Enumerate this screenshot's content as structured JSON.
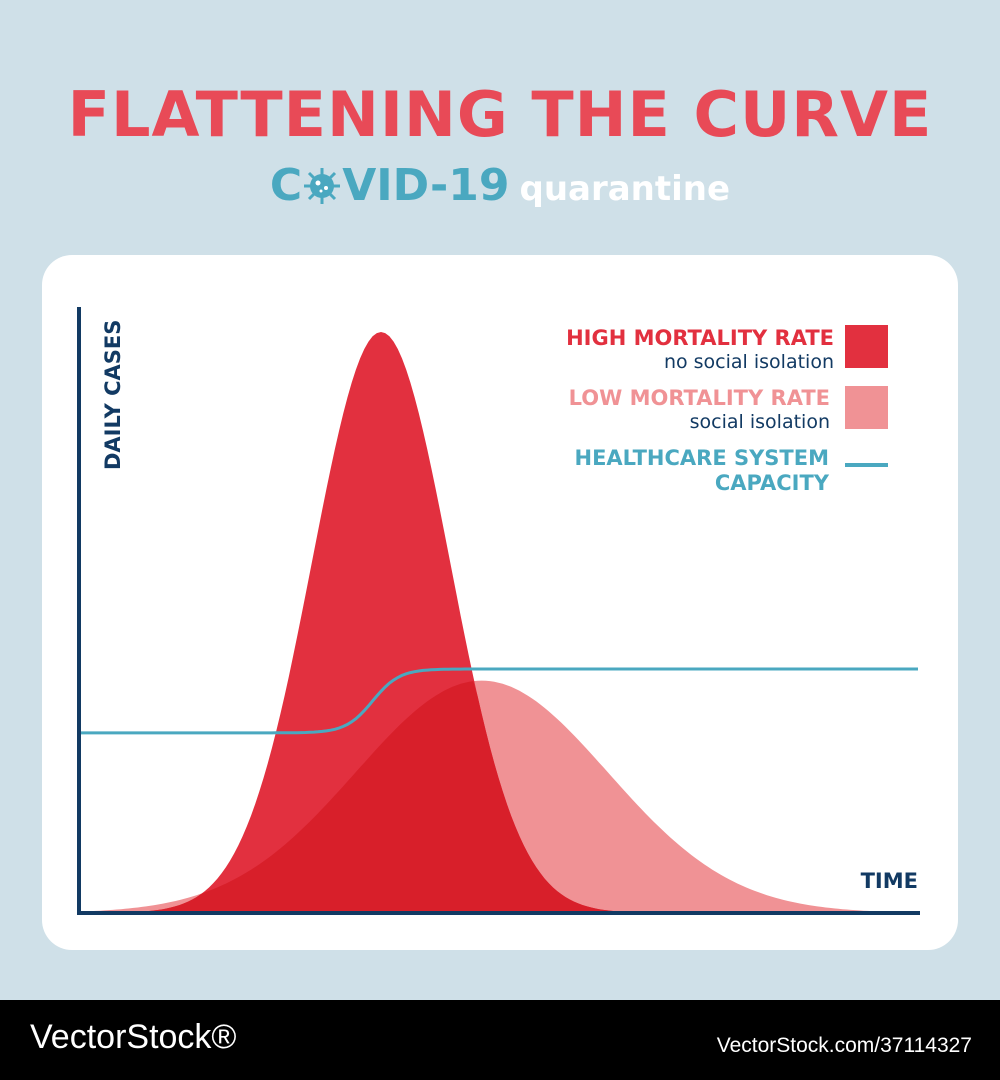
{
  "header": {
    "title": "FLATTENING THE CURVE",
    "subtitle_prefix": "C",
    "subtitle_main": "VID-19",
    "subtitle_suffix": "quarantine"
  },
  "colors": {
    "background": "#cfe0e8",
    "title": "#e84a57",
    "high": "#e2303f",
    "low": "#f09295",
    "overlap": "#d81f2a",
    "capacity": "#4aa8c0",
    "axis": "#123a63"
  },
  "chart_data": {
    "type": "area",
    "title": "FLATTENING THE CURVE",
    "xlabel": "TIME",
    "ylabel": "DAILY CASES",
    "xlim": [
      0,
      100
    ],
    "ylim": [
      0,
      100
    ],
    "grid": false,
    "legend_position": "top-right",
    "series": [
      {
        "name": "HIGH MORTALITY RATE",
        "description": "no social isolation",
        "kind": "gaussian",
        "peak_x": 36,
        "peak_y": 100,
        "spread": 8.2,
        "color": "#e2303f"
      },
      {
        "name": "LOW MORTALITY RATE",
        "description": "social isolation",
        "kind": "gaussian",
        "peak_x": 48,
        "peak_y": 40,
        "spread": 15,
        "color": "#f09295"
      },
      {
        "name": "HEALTHCARE SYSTEM CAPACITY",
        "kind": "step",
        "y_before": 31,
        "y_after": 42,
        "transition_x": 35,
        "color": "#4aa8c0"
      }
    ],
    "legend": [
      {
        "label": "HIGH MORTALITY RATE",
        "sub": "no social isolation",
        "color": "#e2303f"
      },
      {
        "label": "LOW MORTALITY RATE",
        "sub": "social isolation",
        "color": "#f09295"
      },
      {
        "label": "HEALTHCARE SYSTEM",
        "label2": "CAPACITY",
        "color": "#4aa8c0"
      }
    ]
  },
  "footer": {
    "brand": "VectorStock®",
    "id": "VectorStock.com/37114327"
  }
}
